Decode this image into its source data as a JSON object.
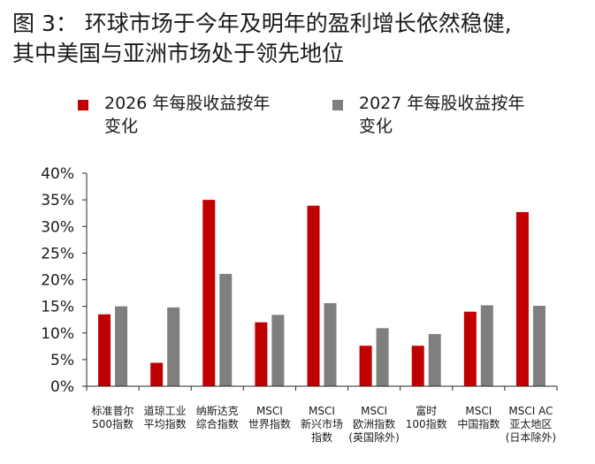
{
  "title": {
    "line1": "图 3： 环球市场于今年及明年的盈利增长依然稳健,",
    "line2": "其中美国与亚洲市场处于领先地位"
  },
  "chart_data": {
    "type": "bar",
    "title": "图 3： 环球市场于今年及明年的盈利增长依然稳健, 其中美国与亚洲市场处于领先地位",
    "xlabel": "",
    "ylabel": "",
    "ylim": [
      0,
      40
    ],
    "yticks": [
      "0%",
      "5%",
      "10%",
      "15%",
      "20%",
      "25%",
      "30%",
      "35%",
      "40%"
    ],
    "ytick_values": [
      0,
      5,
      10,
      15,
      20,
      25,
      30,
      35,
      40
    ],
    "grid": false,
    "legend_position": "top",
    "categories": [
      [
        "标准普尔",
        "500指数"
      ],
      [
        "道琼工业",
        "平均指数"
      ],
      [
        "纳斯达克",
        "综合指数"
      ],
      [
        "MSCI",
        "世界指数"
      ],
      [
        "MSCI",
        "新兴市场",
        "指数"
      ],
      [
        "MSCI",
        "欧洲指数",
        "(英国除外)"
      ],
      [
        "富时",
        "100指数"
      ],
      [
        "MSCI",
        "中国指数"
      ],
      [
        "MSCI AC",
        "亚太地区",
        "(日本除外)"
      ]
    ],
    "series": [
      {
        "name": "2026 年每股收益按年变化",
        "name_lines": [
          "2026 年每股收益按年",
          "变化"
        ],
        "color": "#c00000",
        "values": [
          13.5,
          4.4,
          35.0,
          12.0,
          33.9,
          7.6,
          7.6,
          14.0,
          32.7
        ]
      },
      {
        "name": "2027 年每股收益按年变化",
        "name_lines": [
          "2027 年每股收益按年",
          "变化"
        ],
        "color": "#7f7f7f",
        "values": [
          15.0,
          14.8,
          21.1,
          13.4,
          15.6,
          10.9,
          9.8,
          15.2,
          15.1
        ]
      }
    ]
  }
}
